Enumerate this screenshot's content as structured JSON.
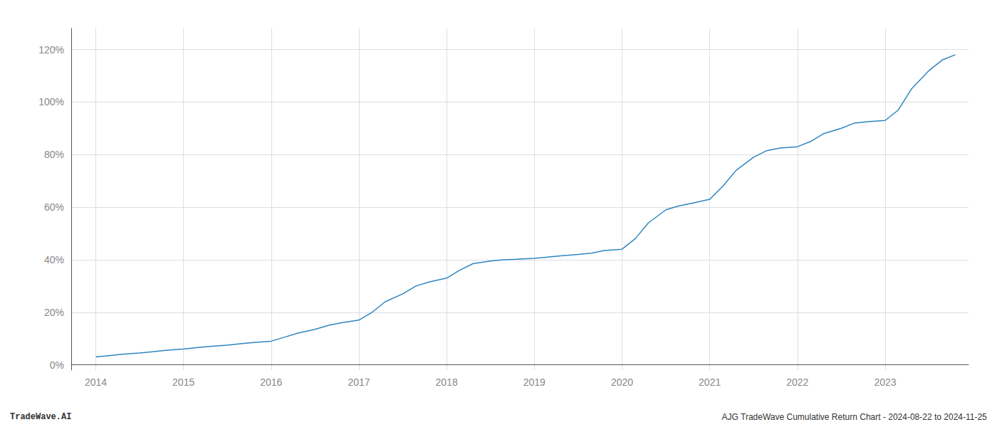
{
  "chart_data": {
    "type": "line",
    "annotations": [
      "TradeWave.AI",
      "AJG TradeWave Cumulative Return Chart - 2024-08-22 to 2024-11-25"
    ],
    "x": [
      2014.0,
      2014.15,
      2014.3,
      2014.5,
      2014.65,
      2014.8,
      2015.0,
      2015.15,
      2015.3,
      2015.5,
      2015.65,
      2015.8,
      2016.0,
      2016.15,
      2016.3,
      2016.5,
      2016.65,
      2016.8,
      2017.0,
      2017.15,
      2017.3,
      2017.5,
      2017.65,
      2017.8,
      2018.0,
      2018.15,
      2018.3,
      2018.5,
      2018.65,
      2018.8,
      2019.0,
      2019.15,
      2019.3,
      2019.5,
      2019.65,
      2019.8,
      2020.0,
      2020.15,
      2020.3,
      2020.5,
      2020.65,
      2020.8,
      2021.0,
      2021.15,
      2021.3,
      2021.5,
      2021.65,
      2021.8,
      2022.0,
      2022.15,
      2022.3,
      2022.5,
      2022.65,
      2022.8,
      2023.0,
      2023.15,
      2023.3,
      2023.5,
      2023.65,
      2023.8
    ],
    "values": [
      3.0,
      3.5,
      4.0,
      4.5,
      5.0,
      5.5,
      6.0,
      6.5,
      7.0,
      7.5,
      8.0,
      8.5,
      9.0,
      10.5,
      12.0,
      13.5,
      15.0,
      16.0,
      17.0,
      20.0,
      24.0,
      27.0,
      30.0,
      31.5,
      33.0,
      36.0,
      38.5,
      39.5,
      40.0,
      40.2,
      40.5,
      41.0,
      41.5,
      42.0,
      42.5,
      43.5,
      44.0,
      48.0,
      54.0,
      59.0,
      60.5,
      61.5,
      63.0,
      68.0,
      74.0,
      79.0,
      81.5,
      82.5,
      83.0,
      85.0,
      88.0,
      90.0,
      92.0,
      92.5,
      93.0,
      97.0,
      105.0,
      112.0,
      116.0,
      118.0
    ],
    "color": "#2E86C1",
    "xlim": [
      2013.72,
      2023.95
    ],
    "ylim": [
      -2,
      128
    ],
    "xticks": [
      2014,
      2015,
      2016,
      2017,
      2018,
      2019,
      2020,
      2021,
      2022,
      2023
    ],
    "yticks": [
      {
        "value": 0,
        "label": "0%"
      },
      {
        "value": 20,
        "label": "20%"
      },
      {
        "value": 40,
        "label": "40%"
      },
      {
        "value": 60,
        "label": "60%"
      },
      {
        "value": 80,
        "label": "80%"
      },
      {
        "value": 100,
        "label": "100%"
      },
      {
        "value": 120,
        "label": "120%"
      }
    ],
    "grid": true
  }
}
